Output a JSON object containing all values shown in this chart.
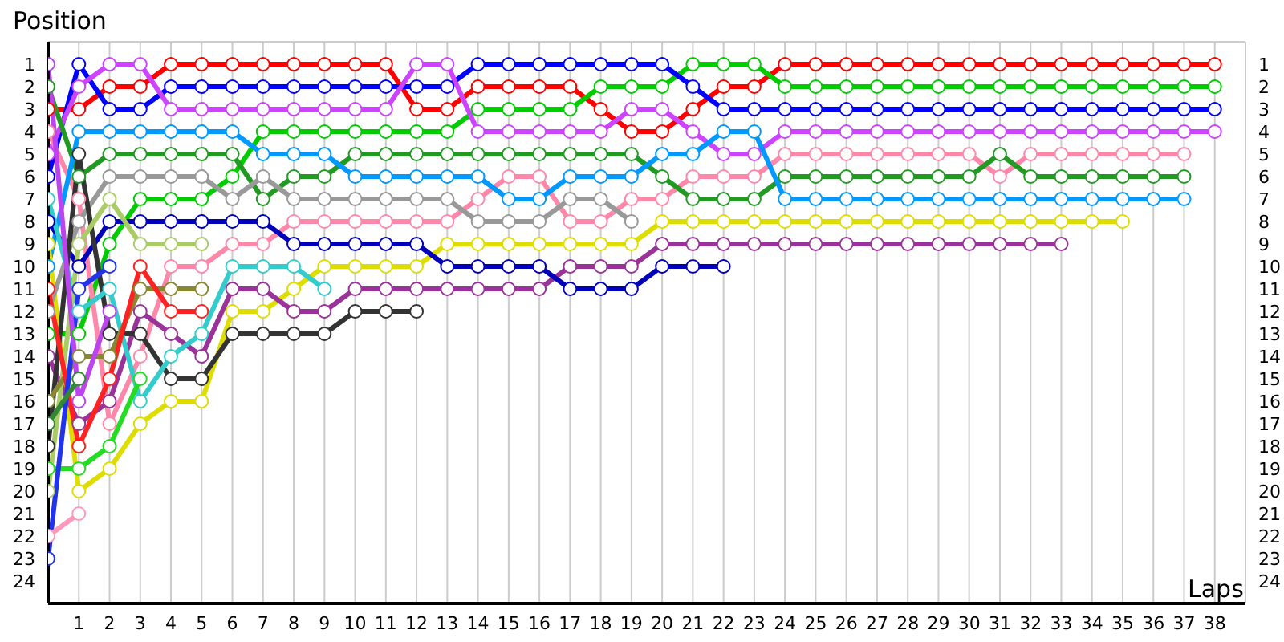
{
  "chart_data": {
    "type": "line",
    "xlabel": "Laps",
    "ylabel": "Position",
    "x": [
      0,
      1,
      2,
      3,
      4,
      5,
      6,
      7,
      8,
      9,
      10,
      11,
      12,
      13,
      14,
      15,
      16,
      17,
      18,
      19,
      20,
      21,
      22,
      23,
      24,
      25,
      26,
      27,
      28,
      29,
      30,
      31,
      32,
      33,
      34,
      35,
      36,
      37,
      38
    ],
    "xlim": [
      0,
      39
    ],
    "xticks": [
      1,
      2,
      3,
      4,
      5,
      6,
      7,
      8,
      9,
      10,
      11,
      12,
      13,
      14,
      15,
      16,
      17,
      18,
      19,
      20,
      21,
      22,
      23,
      24,
      25,
      26,
      27,
      28,
      29,
      30,
      31,
      32,
      33,
      34,
      35,
      36,
      37,
      38
    ],
    "ylim": [
      25,
      0
    ],
    "yticks": [
      1,
      2,
      3,
      4,
      5,
      6,
      7,
      8,
      9,
      10,
      11,
      12,
      13,
      14,
      15,
      16,
      17,
      18,
      19,
      20,
      21,
      22,
      23,
      24
    ],
    "y2lim": [
      25,
      0
    ],
    "y2ticks": [
      1,
      2,
      3,
      4,
      5,
      6,
      7,
      8,
      9,
      10,
      11,
      12,
      13,
      14,
      15,
      16,
      17,
      18,
      19,
      20,
      21,
      22,
      23,
      24
    ],
    "grid": true,
    "marker": "circle",
    "line_style": "solid",
    "series": [
      {
        "color": "#ff0000",
        "values": [
          3,
          3,
          2,
          2,
          1,
          1,
          1,
          1,
          1,
          1,
          1,
          1,
          3,
          3,
          2,
          2,
          2,
          2,
          3,
          4,
          4,
          3,
          2,
          2,
          1,
          1,
          1,
          1,
          1,
          1,
          1,
          1,
          1,
          1,
          1,
          1,
          1,
          1,
          1
        ]
      },
      {
        "color": "#00cc00",
        "values": [
          13,
          13,
          9,
          7,
          7,
          7,
          6,
          4,
          4,
          4,
          4,
          4,
          4,
          4,
          3,
          3,
          3,
          3,
          2,
          2,
          2,
          1,
          1,
          1,
          2,
          2,
          2,
          2,
          2,
          2,
          2,
          2,
          2,
          2,
          2,
          2,
          2,
          2,
          2
        ]
      },
      {
        "color": "#0000ff",
        "values": [
          6,
          1,
          3,
          3,
          2,
          2,
          2,
          2,
          2,
          2,
          2,
          2,
          2,
          2,
          1,
          1,
          1,
          1,
          1,
          1,
          1,
          2,
          3,
          3,
          3,
          3,
          3,
          3,
          3,
          3,
          3,
          3,
          3,
          3,
          3,
          3,
          3,
          3,
          3
        ]
      },
      {
        "color": "#cc44ff",
        "values": [
          5,
          2,
          1,
          1,
          3,
          3,
          3,
          3,
          3,
          3,
          3,
          3,
          1,
          1,
          4,
          4,
          4,
          4,
          4,
          3,
          3,
          4,
          5,
          5,
          4,
          4,
          4,
          4,
          4,
          4,
          4,
          4,
          4,
          4,
          4,
          4,
          4,
          4,
          4
        ]
      },
      {
        "color": "#ff88aa",
        "values": [
          4,
          7,
          17,
          14,
          10,
          10,
          9,
          9,
          8,
          8,
          8,
          8,
          8,
          8,
          7,
          6,
          6,
          8,
          8,
          7,
          7,
          6,
          6,
          6,
          5,
          5,
          5,
          5,
          5,
          5,
          5,
          6,
          5,
          5,
          5,
          5,
          5,
          5,
          null
        ]
      },
      {
        "color": "#229922",
        "values": [
          2,
          6,
          5,
          5,
          5,
          5,
          5,
          7,
          6,
          6,
          5,
          5,
          5,
          5,
          5,
          5,
          5,
          5,
          5,
          5,
          6,
          7,
          7,
          7,
          6,
          6,
          6,
          6,
          6,
          6,
          6,
          5,
          6,
          6,
          6,
          6,
          6,
          6,
          null
        ]
      },
      {
        "color": "#0099ff",
        "values": [
          10,
          4,
          4,
          4,
          4,
          4,
          4,
          5,
          5,
          5,
          6,
          6,
          6,
          6,
          6,
          7,
          7,
          6,
          6,
          6,
          5,
          5,
          4,
          4,
          7,
          7,
          7,
          7,
          7,
          7,
          7,
          7,
          7,
          7,
          7,
          7,
          7,
          7,
          null
        ]
      },
      {
        "color": "#dddd00",
        "values": [
          9,
          20,
          19,
          17,
          16,
          16,
          12,
          12,
          11,
          10,
          10,
          10,
          10,
          9,
          9,
          9,
          9,
          9,
          9,
          9,
          8,
          8,
          8,
          8,
          8,
          8,
          8,
          8,
          8,
          8,
          8,
          8,
          8,
          8,
          8,
          8,
          null,
          null,
          null
        ]
      },
      {
        "color": "#993399",
        "values": [
          14,
          17,
          16,
          12,
          13,
          14,
          11,
          11,
          12,
          12,
          11,
          11,
          11,
          11,
          11,
          11,
          11,
          10,
          10,
          10,
          9,
          9,
          9,
          9,
          9,
          9,
          9,
          9,
          9,
          9,
          9,
          9,
          9,
          9,
          null,
          null,
          null,
          null,
          null
        ]
      },
      {
        "color": "#0000bb",
        "values": [
          8,
          10,
          8,
          8,
          8,
          8,
          8,
          8,
          9,
          9,
          9,
          9,
          9,
          10,
          10,
          10,
          10,
          11,
          11,
          11,
          10,
          10,
          10,
          null,
          null,
          null,
          null,
          null,
          null,
          null,
          null,
          null,
          null,
          null,
          null,
          null,
          null,
          null,
          null
        ]
      },
      {
        "color": "#999999",
        "values": [
          12,
          8,
          6,
          6,
          6,
          6,
          7,
          6,
          7,
          7,
          7,
          7,
          7,
          7,
          8,
          8,
          8,
          7,
          7,
          8,
          null,
          null,
          null,
          null,
          null,
          null,
          null,
          null,
          null,
          null,
          null,
          null,
          null,
          null,
          null,
          null,
          null,
          null,
          null
        ]
      },
      {
        "color": "#333333",
        "values": [
          18,
          5,
          13,
          13,
          15,
          15,
          13,
          13,
          13,
          13,
          12,
          12,
          12,
          null,
          null,
          null,
          null,
          null,
          null,
          null,
          null,
          null,
          null,
          null,
          null,
          null,
          null,
          null,
          null,
          null,
          null,
          null,
          null,
          null,
          null,
          null,
          null,
          null,
          null
        ]
      },
      {
        "color": "#33cccc",
        "values": [
          7,
          12,
          11,
          16,
          14,
          13,
          10,
          10,
          10,
          11,
          null,
          null,
          null,
          null,
          null,
          null,
          null,
          null,
          null,
          null,
          null,
          null,
          null,
          null,
          null,
          null,
          null,
          null,
          null,
          null,
          null,
          null,
          null,
          null,
          null,
          null,
          null,
          null,
          null
        ]
      },
      {
        "color": "#aacc66",
        "values": [
          20,
          9,
          7,
          9,
          9,
          9,
          null,
          null,
          null,
          null,
          null,
          null,
          null,
          null,
          null,
          null,
          null,
          null,
          null,
          null,
          null,
          null,
          null,
          null,
          null,
          null,
          null,
          null,
          null,
          null,
          null,
          null,
          null,
          null,
          null,
          null,
          null,
          null,
          null
        ]
      },
      {
        "color": "#888833",
        "values": [
          16,
          14,
          14,
          11,
          11,
          11,
          null,
          null,
          null,
          null,
          null,
          null,
          null,
          null,
          null,
          null,
          null,
          null,
          null,
          null,
          null,
          null,
          null,
          null,
          null,
          null,
          null,
          null,
          null,
          null,
          null,
          null,
          null,
          null,
          null,
          null,
          null,
          null,
          null
        ]
      },
      {
        "color": "#ff2222",
        "values": [
          11,
          18,
          15,
          10,
          12,
          12,
          null,
          null,
          null,
          null,
          null,
          null,
          null,
          null,
          null,
          null,
          null,
          null,
          null,
          null,
          null,
          null,
          null,
          null,
          null,
          null,
          null,
          null,
          null,
          null,
          null,
          null,
          null,
          null,
          null,
          null,
          null,
          null,
          null
        ]
      },
      {
        "color": "#22dd22",
        "values": [
          19,
          19,
          18,
          15,
          null,
          null,
          null,
          null,
          null,
          null,
          null,
          null,
          null,
          null,
          null,
          null,
          null,
          null,
          null,
          null,
          null,
          null,
          null,
          null,
          null,
          null,
          null,
          null,
          null,
          null,
          null,
          null,
          null,
          null,
          null,
          null,
          null,
          null,
          null
        ]
      },
      {
        "color": "#2233ee",
        "values": [
          23,
          11,
          10,
          null,
          null,
          null,
          null,
          null,
          null,
          null,
          null,
          null,
          null,
          null,
          null,
          null,
          null,
          null,
          null,
          null,
          null,
          null,
          null,
          null,
          null,
          null,
          null,
          null,
          null,
          null,
          null,
          null,
          null,
          null,
          null,
          null,
          null,
          null,
          null
        ]
      },
      {
        "color": "#bb44ee",
        "values": [
          1,
          16,
          12,
          null,
          null,
          null,
          null,
          null,
          null,
          null,
          null,
          null,
          null,
          null,
          null,
          null,
          null,
          null,
          null,
          null,
          null,
          null,
          null,
          null,
          null,
          null,
          null,
          null,
          null,
          null,
          null,
          null,
          null,
          null,
          null,
          null,
          null,
          null,
          null
        ]
      },
      {
        "color": "#338833",
        "values": [
          17,
          15,
          null,
          null,
          null,
          null,
          null,
          null,
          null,
          null,
          null,
          null,
          null,
          null,
          null,
          null,
          null,
          null,
          null,
          null,
          null,
          null,
          null,
          null,
          null,
          null,
          null,
          null,
          null,
          null,
          null,
          null,
          null,
          null,
          null,
          null,
          null,
          null,
          null
        ]
      },
      {
        "color": "#ff99bb",
        "values": [
          22,
          21,
          null,
          null,
          null,
          null,
          null,
          null,
          null,
          null,
          null,
          null,
          null,
          null,
          null,
          null,
          null,
          null,
          null,
          null,
          null,
          null,
          null,
          null,
          null,
          null,
          null,
          null,
          null,
          null,
          null,
          null,
          null,
          null,
          null,
          null,
          null,
          null,
          null
        ]
      }
    ]
  }
}
